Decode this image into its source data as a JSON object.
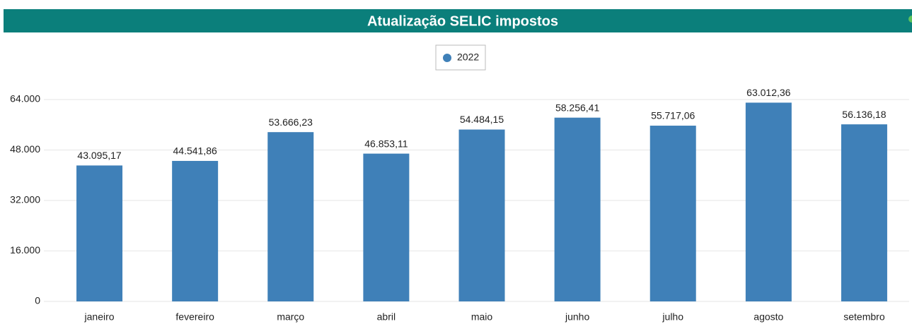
{
  "chart_data": {
    "type": "bar",
    "title": "Atualização SELIC impostos",
    "categories": [
      "janeiro",
      "fevereiro",
      "março",
      "abril",
      "maio",
      "junho",
      "julho",
      "agosto",
      "setembro"
    ],
    "series": [
      {
        "name": "2022",
        "color": "#3f80b8",
        "values": [
          43095.17,
          44541.86,
          53666.23,
          46853.11,
          54484.15,
          58256.41,
          55717.06,
          63012.36,
          56136.18
        ],
        "value_labels": [
          "43.095,17",
          "44.541,86",
          "53.666,23",
          "46.853,11",
          "54.484,15",
          "58.256,41",
          "55.717,06",
          "63.012,36",
          "56.136,18"
        ]
      }
    ],
    "ylim": [
      0,
      64000
    ],
    "yticks": [
      0,
      {
        "value": 16000,
        "label": "16.000"
      },
      {
        "value": 32000,
        "label": "32.000"
      },
      {
        "value": 48000,
        "label": "48.000"
      },
      {
        "value": 64000,
        "label": "64.000"
      }
    ],
    "grid": true,
    "legend": "top"
  }
}
